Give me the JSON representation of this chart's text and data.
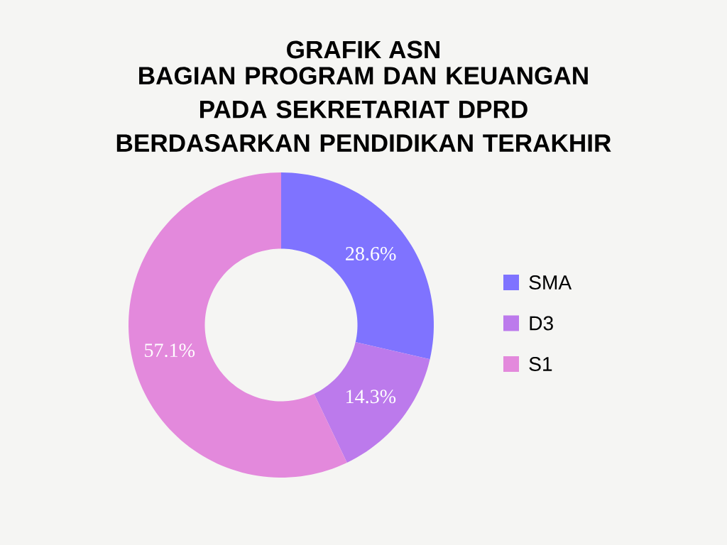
{
  "chart_data": {
    "type": "donut",
    "title": "GRAFIK ASN",
    "subtitle": "BAGIAN PROGRAM DAN KEUANGAN PADA SEKRETARIAT DPRD BERDASARKAN PENDIDIKAN TERAKHIR",
    "categories": [
      "SMA",
      "D3",
      "S1"
    ],
    "values": [
      28.6,
      14.3,
      57.1
    ],
    "colors": [
      "#7f73ff",
      "#bc7aec",
      "#e389dc"
    ],
    "value_labels": [
      "28.6%",
      "14.3%",
      "57.1%"
    ],
    "legend": "right"
  }
}
